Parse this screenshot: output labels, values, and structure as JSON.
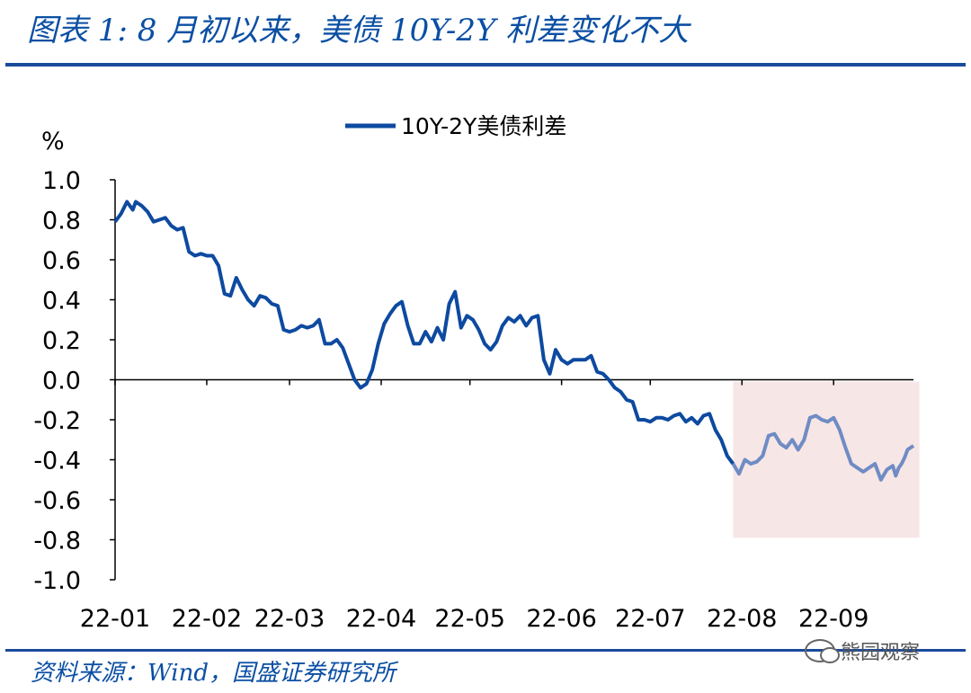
{
  "header": {
    "title": "图表 1:  8 月初以来，美债 10Y-2Y 利差变化不大"
  },
  "footer": {
    "source": "资料来源：Wind，国盛证券研究所",
    "watermark": "熊园观察"
  },
  "colors": {
    "series": "#0d4aa0",
    "series_highlight": "#6f8cc4",
    "shade": "#f7e6e6",
    "rule": "#1a4a9c"
  },
  "chart_data": {
    "type": "line",
    "title": "",
    "ylabel": "%",
    "xlabel": "",
    "ylim": [
      -1.0,
      1.0
    ],
    "xlim": [
      0,
      270
    ],
    "yticks": [
      "1.0",
      "0.8",
      "0.6",
      "0.4",
      "0.2",
      "0.0",
      "-0.2",
      "-0.4",
      "-0.6",
      "-0.8",
      "-1.0"
    ],
    "ytick_values": [
      1.0,
      0.8,
      0.6,
      0.4,
      0.2,
      0.0,
      -0.2,
      -0.4,
      -0.6,
      -0.8,
      -1.0
    ],
    "xticks": [
      "22-01",
      "22-02",
      "22-03",
      "22-04",
      "22-05",
      "22-06",
      "22-07",
      "22-08",
      "22-09"
    ],
    "xtick_positions": [
      0,
      31,
      59,
      90,
      120,
      151,
      181,
      212,
      243
    ],
    "legend": {
      "position": "top-center",
      "entries": [
        "10Y-2Y美债利差"
      ]
    },
    "highlight_region": {
      "x": [
        209,
        272
      ],
      "y": [
        -0.79,
        -0.01
      ]
    },
    "highlight_from_x": 209,
    "series": [
      {
        "name": "10Y-2Y美债利差",
        "x": [
          0,
          2,
          4,
          6,
          7,
          9,
          11,
          13,
          15,
          17,
          19,
          21,
          23,
          25,
          27,
          29,
          31,
          33,
          35,
          37,
          39,
          41,
          43,
          45,
          47,
          49,
          51,
          53,
          55,
          57,
          59,
          61,
          63,
          65,
          67,
          69,
          71,
          73,
          75,
          77,
          79,
          81,
          83,
          85,
          87,
          89,
          91,
          93,
          95,
          97,
          99,
          101,
          103,
          105,
          107,
          109,
          111,
          113,
          115,
          117,
          119,
          121,
          123,
          125,
          127,
          129,
          131,
          133,
          135,
          137,
          139,
          141,
          143,
          145,
          147,
          149,
          151,
          153,
          155,
          157,
          159,
          161,
          163,
          165,
          167,
          169,
          171,
          173,
          175,
          177,
          179,
          181,
          183,
          185,
          187,
          189,
          191,
          193,
          195,
          197,
          199,
          201,
          203,
          205,
          207,
          209,
          211,
          213,
          215,
          217,
          219,
          221,
          223,
          225,
          227,
          229,
          231,
          233,
          235,
          237,
          239,
          241,
          243,
          245,
          247,
          249,
          251,
          253,
          255,
          257,
          259,
          261,
          263,
          264,
          265,
          266,
          267,
          268,
          270
        ],
        "y": [
          0.79,
          0.83,
          0.89,
          0.85,
          0.89,
          0.87,
          0.84,
          0.79,
          0.8,
          0.81,
          0.77,
          0.75,
          0.76,
          0.64,
          0.62,
          0.63,
          0.62,
          0.62,
          0.57,
          0.43,
          0.42,
          0.51,
          0.45,
          0.4,
          0.37,
          0.42,
          0.41,
          0.38,
          0.37,
          0.25,
          0.24,
          0.25,
          0.27,
          0.26,
          0.27,
          0.3,
          0.18,
          0.18,
          0.2,
          0.16,
          0.08,
          0.0,
          -0.04,
          -0.02,
          0.05,
          0.18,
          0.28,
          0.33,
          0.37,
          0.39,
          0.27,
          0.18,
          0.18,
          0.24,
          0.19,
          0.26,
          0.2,
          0.38,
          0.44,
          0.26,
          0.32,
          0.3,
          0.25,
          0.18,
          0.15,
          0.19,
          0.27,
          0.31,
          0.29,
          0.32,
          0.27,
          0.31,
          0.32,
          0.1,
          0.03,
          0.15,
          0.1,
          0.08,
          0.1,
          0.1,
          0.1,
          0.12,
          0.04,
          0.03,
          0.0,
          -0.04,
          -0.06,
          -0.1,
          -0.11,
          -0.2,
          -0.2,
          -0.21,
          -0.19,
          -0.19,
          -0.2,
          -0.18,
          -0.17,
          -0.21,
          -0.19,
          -0.22,
          -0.18,
          -0.17,
          -0.25,
          -0.3,
          -0.38,
          -0.42,
          -0.47,
          -0.4,
          -0.42,
          -0.41,
          -0.38,
          -0.28,
          -0.27,
          -0.32,
          -0.34,
          -0.3,
          -0.35,
          -0.3,
          -0.19,
          -0.18,
          -0.2,
          -0.21,
          -0.19,
          -0.25,
          -0.34,
          -0.42,
          -0.44,
          -0.46,
          -0.44,
          -0.42,
          -0.5,
          -0.45,
          -0.43,
          -0.48,
          -0.44,
          -0.42,
          -0.39,
          -0.35,
          -0.33
        ]
      }
    ]
  }
}
